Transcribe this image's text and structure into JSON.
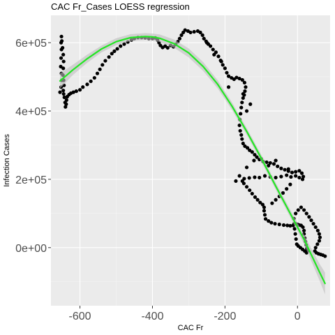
{
  "chart_data": {
    "type": "scatter",
    "title": "CAC Fr_Cases LOESS regression",
    "xlabel": "CAC Fr",
    "ylabel": "Infection Cases",
    "xlim": [
      -680,
      90
    ],
    "ylim": [
      -170000,
      680000
    ],
    "x_ticks": [
      {
        "value": -600,
        "label": "-600"
      },
      {
        "value": -400,
        "label": "-400"
      },
      {
        "value": -200,
        "label": "-200"
      },
      {
        "value": 0,
        "label": "0"
      }
    ],
    "y_ticks": [
      {
        "value": 0,
        "label": "0e+00"
      },
      {
        "value": 200000,
        "label": "2e+05"
      },
      {
        "value": 400000,
        "label": "4e+05"
      },
      {
        "value": 600000,
        "label": "6e+05"
      }
    ],
    "grid": true,
    "legend": "none",
    "colors": {
      "panel": "#ebebeb",
      "grid_major": "#ffffff",
      "grid_minor": "#f5f5f5",
      "points": "#000000",
      "fit_line": "#22e622",
      "confidence_band": "#bebebe"
    },
    "series": [
      {
        "kind": "points",
        "points": [
          [
            -655,
            455000
          ],
          [
            -652,
            470000
          ],
          [
            -650,
            490000
          ],
          [
            -651,
            510000
          ],
          [
            -653,
            530000
          ],
          [
            -652,
            555000
          ],
          [
            -651,
            580000
          ],
          [
            -652,
            600000
          ],
          [
            -651,
            618000
          ],
          [
            -650,
            605000
          ],
          [
            -648,
            585000
          ],
          [
            -646,
            565000
          ],
          [
            -645,
            545000
          ],
          [
            -646,
            525000
          ],
          [
            -647,
            505000
          ],
          [
            -645,
            490000
          ],
          [
            -644,
            475000
          ],
          [
            -646,
            460000
          ],
          [
            -645,
            450000
          ],
          [
            -643,
            440000
          ],
          [
            -641,
            425000
          ],
          [
            -640,
            412000
          ],
          [
            -638,
            420000
          ],
          [
            -637,
            432000
          ],
          [
            -635,
            442000
          ],
          [
            -630,
            448000
          ],
          [
            -625,
            452000
          ],
          [
            -618,
            455000
          ],
          [
            -610,
            458000
          ],
          [
            -600,
            462000
          ],
          [
            -592,
            470000
          ],
          [
            -580,
            478000
          ],
          [
            -570,
            487000
          ],
          [
            -560,
            497000
          ],
          [
            -552,
            510000
          ],
          [
            -545,
            522000
          ],
          [
            -538,
            535000
          ],
          [
            -530,
            547000
          ],
          [
            -520,
            558000
          ],
          [
            -512,
            568000
          ],
          [
            -505,
            575000
          ],
          [
            -497,
            582000
          ],
          [
            -488,
            590000
          ],
          [
            -478,
            596000
          ],
          [
            -468,
            602000
          ],
          [
            -458,
            608000
          ],
          [
            -450,
            612000
          ],
          [
            -440,
            615000
          ],
          [
            -430,
            615000
          ],
          [
            -420,
            614000
          ],
          [
            -410,
            612000
          ],
          [
            -400,
            612000
          ],
          [
            -392,
            614000
          ],
          [
            -386,
            608000
          ],
          [
            -382,
            600000
          ],
          [
            -378,
            592000
          ],
          [
            -372,
            586000
          ],
          [
            -365,
            590000
          ],
          [
            -358,
            585000
          ],
          [
            -350,
            592000
          ],
          [
            -342,
            588000
          ],
          [
            -336,
            595000
          ],
          [
            -330,
            603000
          ],
          [
            -325,
            612000
          ],
          [
            -320,
            622000
          ],
          [
            -315,
            630000
          ],
          [
            -310,
            637000
          ],
          [
            -302,
            634000
          ],
          [
            -295,
            630000
          ],
          [
            -285,
            632000
          ],
          [
            -275,
            634000
          ],
          [
            -268,
            630000
          ],
          [
            -262,
            622000
          ],
          [
            -258,
            612000
          ],
          [
            -252,
            604000
          ],
          [
            -246,
            596000
          ],
          [
            -240,
            590000
          ],
          [
            -233,
            580000
          ],
          [
            -225,
            572000
          ],
          [
            -218,
            560000
          ],
          [
            -212,
            548000
          ],
          [
            -206,
            535000
          ],
          [
            -200,
            525000
          ],
          [
            -195,
            512000
          ],
          [
            -190,
            502000
          ],
          [
            -182,
            497000
          ],
          [
            -175,
            493000
          ],
          [
            -168,
            498000
          ],
          [
            -160,
            495000
          ],
          [
            -152,
            491000
          ],
          [
            -146,
            483000
          ],
          [
            -143,
            470000
          ],
          [
            -145,
            458000
          ],
          [
            -147,
            447000
          ],
          [
            -150,
            438000
          ],
          [
            -153,
            425000
          ],
          [
            -155,
            410000
          ],
          [
            -157,
            392000
          ],
          [
            -159,
            375000
          ],
          [
            -160,
            358000
          ],
          [
            -158,
            342000
          ],
          [
            -155,
            330000
          ],
          [
            -153,
            318000
          ],
          [
            -150,
            305000
          ],
          [
            -145,
            297000
          ],
          [
            -138,
            292000
          ],
          [
            -132,
            285000
          ],
          [
            -125,
            280000
          ],
          [
            -118,
            272000
          ],
          [
            -112,
            265000
          ],
          [
            -105,
            258000
          ],
          [
            -95,
            252000
          ],
          [
            -85,
            250000
          ],
          [
            -75,
            248000
          ],
          [
            -65,
            245000
          ],
          [
            -55,
            238000
          ],
          [
            -45,
            232000
          ],
          [
            -35,
            228000
          ],
          [
            -25,
            224000
          ],
          [
            -15,
            220000
          ],
          [
            -5,
            222000
          ],
          [
            5,
            225000
          ],
          [
            12,
            218000
          ],
          [
            16,
            208000
          ],
          [
            14,
            200000
          ],
          [
            5,
            205000
          ],
          [
            -5,
            210000
          ],
          [
            -18,
            207000
          ],
          [
            -30,
            212000
          ],
          [
            -45,
            208000
          ],
          [
            -60,
            205000
          ],
          [
            -75,
            207000
          ],
          [
            -90,
            210000
          ],
          [
            -105,
            205000
          ],
          [
            -118,
            206000
          ],
          [
            -133,
            204000
          ],
          [
            -147,
            202000
          ],
          [
            -152,
            195000
          ],
          [
            -148,
            188000
          ],
          [
            -140,
            178000
          ],
          [
            -132,
            168000
          ],
          [
            -125,
            158000
          ],
          [
            -117,
            148000
          ],
          [
            -110,
            140000
          ],
          [
            -103,
            132000
          ],
          [
            -96,
            126000
          ],
          [
            -92,
            118000
          ],
          [
            -92,
            108000
          ],
          [
            -90,
            96000
          ],
          [
            -88,
            84000
          ],
          [
            -80,
            78000
          ],
          [
            -72,
            73000
          ],
          [
            -62,
            70000
          ],
          [
            -50,
            68000
          ],
          [
            -38,
            66000
          ],
          [
            -28,
            65000
          ],
          [
            -20,
            64000
          ],
          [
            -12,
            65000
          ],
          [
            -5,
            70000
          ],
          [
            0,
            68000
          ],
          [
            5,
            66000
          ],
          [
            10,
            65000
          ],
          [
            15,
            60000
          ],
          [
            18,
            50000
          ],
          [
            18,
            40000
          ],
          [
            20,
            28000
          ],
          [
            22,
            18000
          ],
          [
            24,
            8000
          ],
          [
            26,
            -2000
          ],
          [
            28,
            -10000
          ],
          [
            25,
            -15000
          ],
          [
            20,
            -10000
          ],
          [
            14,
            -5000
          ],
          [
            8,
            0
          ],
          [
            2,
            5000
          ],
          [
            -2,
            10000
          ],
          [
            -4,
            25000
          ],
          [
            -6,
            40000
          ],
          [
            -8,
            55000
          ],
          [
            -9,
            70000
          ],
          [
            -10,
            85000
          ],
          [
            -5,
            100000
          ],
          [
            2,
            110000
          ],
          [
            10,
            118000
          ],
          [
            18,
            110000
          ],
          [
            25,
            100000
          ],
          [
            32,
            90000
          ],
          [
            38,
            80000
          ],
          [
            44,
            70000
          ],
          [
            50,
            60000
          ],
          [
            56,
            50000
          ],
          [
            60,
            40000
          ],
          [
            62,
            30000
          ],
          [
            60,
            20000
          ],
          [
            55,
            10000
          ],
          [
            50,
            0
          ],
          [
            48,
            -10000
          ],
          [
            52,
            -15000
          ],
          [
            58,
            -18000
          ],
          [
            64,
            -20000
          ],
          [
            70,
            -22000
          ],
          [
            76,
            -25000
          ],
          [
            -70,
            130000
          ],
          [
            -60,
            140000
          ],
          [
            -50,
            150000
          ],
          [
            -40,
            160000
          ],
          [
            -30,
            172000
          ],
          [
            -20,
            185000
          ],
          [
            -25,
            230000
          ],
          [
            -60,
            255000
          ],
          [
            -80,
            240000
          ],
          [
            -100,
            260000
          ],
          [
            -120,
            255000
          ],
          [
            -140,
            235000
          ],
          [
            -160,
            210000
          ],
          [
            -170,
            195000
          ],
          [
            -140,
            400000
          ],
          [
            -130,
            420000
          ],
          [
            -150,
            450000
          ],
          [
            -190,
            470000
          ],
          [
            -210,
            545000
          ],
          [
            -230,
            565000
          ],
          [
            -250,
            600000
          ]
        ]
      },
      {
        "kind": "loess",
        "x": [
          -655,
          -620,
          -580,
          -540,
          -500,
          -460,
          -420,
          -400,
          -380,
          -340,
          -300,
          -260,
          -220,
          -180,
          -140,
          -100,
          -60,
          -20,
          20,
          60,
          76
        ],
        "y": [
          488000,
          520000,
          553000,
          582000,
          603000,
          615000,
          618000,
          617000,
          613000,
          597000,
          570000,
          530000,
          478000,
          413000,
          340000,
          262000,
          180000,
          100000,
          20000,
          -70000,
          -105000
        ],
        "band_halfwidth": [
          22000,
          15000,
          12000,
          10000,
          10000,
          10000,
          10000,
          10000,
          11000,
          12000,
          13000,
          13000,
          12000,
          11000,
          10000,
          10000,
          10000,
          11000,
          14000,
          24000,
          32000
        ]
      }
    ]
  }
}
